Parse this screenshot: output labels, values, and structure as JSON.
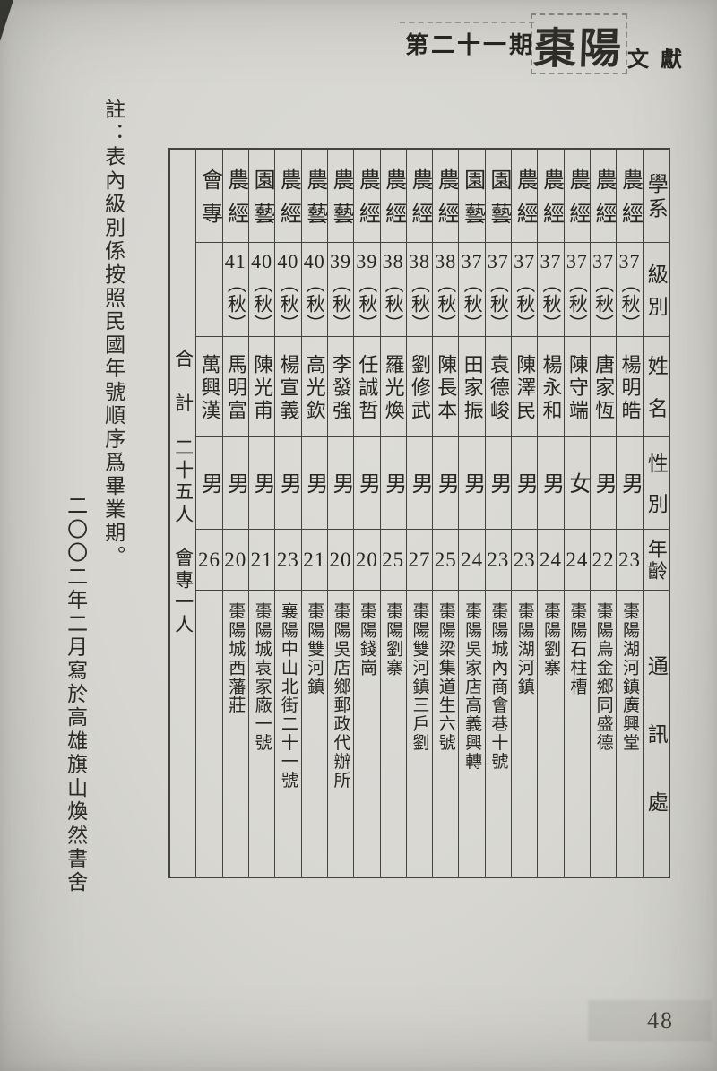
{
  "page": {
    "issue_label": "第二十一期",
    "logo_title": "棗陽",
    "logo_subtitle": "文獻",
    "note_line1": "註：表內級別係按照民國年號順序爲畢業期。",
    "note_line2": "二〇〇二年二月寫於高雄旗山煥然書舍",
    "page_number": "48"
  },
  "table": {
    "headers": [
      "學系",
      "級別",
      "姓名",
      "性別",
      "年齡",
      "通訊處"
    ],
    "summary": {
      "total": "合　計　二十五人",
      "extra": "會專一人"
    },
    "people": [
      {
        "dept": "農經",
        "year": "37",
        "term": "（秋）",
        "name": "楊明皓",
        "sex": "男",
        "age": "23",
        "address": "棗陽湖河鎮廣興堂"
      },
      {
        "dept": "農經",
        "year": "37",
        "term": "（秋）",
        "name": "唐家恆",
        "sex": "男",
        "age": "22",
        "address": "棗陽烏金鄉同盛德"
      },
      {
        "dept": "農經",
        "year": "37",
        "term": "（秋）",
        "name": "陳守端",
        "sex": "女",
        "age": "24",
        "address": "棗陽石柱槽"
      },
      {
        "dept": "農經",
        "year": "37",
        "term": "（秋）",
        "name": "楊永和",
        "sex": "男",
        "age": "24",
        "address": "棗陽劉寨"
      },
      {
        "dept": "農經",
        "year": "37",
        "term": "（秋）",
        "name": "陳澤民",
        "sex": "男",
        "age": "23",
        "address": "棗陽湖河鎮"
      },
      {
        "dept": "園藝",
        "year": "37",
        "term": "（秋）",
        "name": "袁德峻",
        "sex": "男",
        "age": "23",
        "address": "棗陽城內商會巷十號"
      },
      {
        "dept": "園藝",
        "year": "37",
        "term": "（秋）",
        "name": "田家振",
        "sex": "男",
        "age": "24",
        "address": "棗陽吳家店高義興轉"
      },
      {
        "dept": "農經",
        "year": "38",
        "term": "（秋）",
        "name": "陳長本",
        "sex": "男",
        "age": "25",
        "address": "棗陽梁集道生六號"
      },
      {
        "dept": "農經",
        "year": "38",
        "term": "（秋）",
        "name": "劉修武",
        "sex": "男",
        "age": "27",
        "address": "棗陽雙河鎮三戶劉"
      },
      {
        "dept": "農經",
        "year": "38",
        "term": "（秋）",
        "name": "羅光煥",
        "sex": "男",
        "age": "25",
        "address": "棗陽劉寨"
      },
      {
        "dept": "農經",
        "year": "39",
        "term": "（秋）",
        "name": "任誠哲",
        "sex": "男",
        "age": "20",
        "address": "棗陽錢崗"
      },
      {
        "dept": "農藝",
        "year": "39",
        "term": "（秋）",
        "name": "李發強",
        "sex": "男",
        "age": "20",
        "address": "棗陽吳店鄉郵政代辦所"
      },
      {
        "dept": "農藝",
        "year": "40",
        "term": "（秋）",
        "name": "高光欽",
        "sex": "男",
        "age": "21",
        "address": "棗陽雙河鎮"
      },
      {
        "dept": "農經",
        "year": "40",
        "term": "（秋）",
        "name": "楊宣義",
        "sex": "男",
        "age": "23",
        "address": "襄陽中山北街二十一號"
      },
      {
        "dept": "園藝",
        "year": "40",
        "term": "（秋）",
        "name": "陳光甫",
        "sex": "男",
        "age": "21",
        "address": "棗陽城袁家廠一號"
      },
      {
        "dept": "農經",
        "year": "41",
        "term": "（秋）",
        "name": "馬明富",
        "sex": "男",
        "age": "20",
        "address": "棗陽城西藩莊"
      },
      {
        "dept": "會專",
        "year": "",
        "term": "",
        "name": "萬興漢",
        "sex": "男",
        "age": "26",
        "address": ""
      }
    ]
  }
}
